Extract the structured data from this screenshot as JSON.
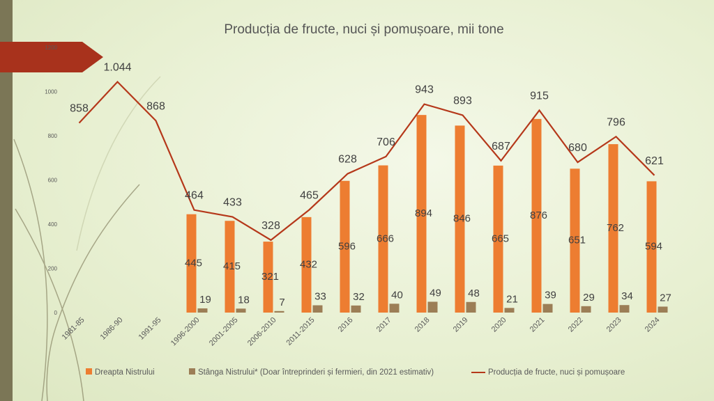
{
  "chart_data": {
    "type": "bar",
    "title": "Producția de fructe, nuci și pomușoare, mii tone",
    "categories": [
      "1981-85",
      "1986-90",
      "1991-95",
      "1996-2000",
      "2001-2005",
      "2006-2010",
      "2011-2015",
      "2016",
      "2017",
      "2018",
      "2019",
      "2020",
      "2021",
      "2022",
      "2023",
      "2024"
    ],
    "series": [
      {
        "name": "Dreapta Nistrului",
        "type": "bar",
        "color": "#ed7d31",
        "values": [
          null,
          null,
          null,
          445,
          415,
          321,
          432,
          596,
          666,
          894,
          846,
          665,
          876,
          651,
          762,
          594
        ],
        "labels": [
          "",
          "",
          "",
          "445",
          "415",
          "321",
          "432",
          "596",
          "666",
          "894",
          "846",
          "665",
          "876",
          "651",
          "762",
          "594"
        ]
      },
      {
        "name": "Stânga Nistrului* (Doar întreprinderi și fermieri, din 2021 estimativ)",
        "type": "bar",
        "color": "#9c7e56",
        "values": [
          null,
          null,
          null,
          19,
          18,
          7,
          33,
          32,
          40,
          49,
          48,
          21,
          39,
          29,
          34,
          27
        ],
        "labels": [
          "",
          "",
          "",
          "19",
          "18",
          "7",
          "33",
          "32",
          "40",
          "49",
          "48",
          "21",
          "39",
          "29",
          "34",
          "27"
        ]
      },
      {
        "name": "Producția de fructe, nuci și pomușoare",
        "type": "line",
        "color": "#b5381a",
        "values": [
          858,
          1044,
          868,
          464,
          433,
          328,
          465,
          628,
          706,
          943,
          893,
          687,
          915,
          680,
          796,
          621
        ],
        "labels": [
          "858",
          "1.044",
          "868",
          "464",
          "433",
          "328",
          "465",
          "628",
          "706",
          "943",
          "893",
          "687",
          "915",
          "680",
          "796",
          "621"
        ]
      }
    ],
    "yticks": [
      "0",
      "200",
      "400",
      "600",
      "800",
      "1000",
      "1200"
    ],
    "ylim": [
      0,
      1200
    ],
    "grid": false,
    "legend_position": "bottom"
  }
}
